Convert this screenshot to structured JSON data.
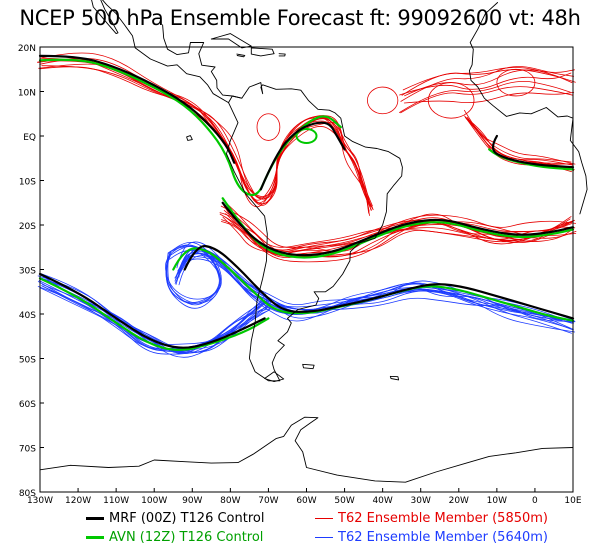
{
  "title": "NCEP 500 hPa Ensemble Forecast   ft: 99092600  vt: 48h",
  "map": {
    "projection": "lat-lon",
    "lon_range": [
      -130,
      10
    ],
    "lat_range": [
      -80,
      20
    ],
    "lat_ticks": [
      "20N",
      "10N",
      "EQ",
      "10S",
      "20S",
      "30S",
      "40S",
      "50S",
      "60S",
      "70S",
      "80S"
    ],
    "lon_ticks": [
      "130W",
      "120W",
      "110W",
      "100W",
      "90W",
      "80W",
      "70W",
      "60W",
      "50W",
      "40W",
      "30W",
      "20W",
      "10W",
      "0",
      "10E"
    ]
  },
  "legend": [
    {
      "label": "MRF (00Z) T126 Control",
      "color": "#000000"
    },
    {
      "label": "AVN (12Z) T126 Control",
      "color": "#00c800"
    },
    {
      "label": "T62 Ensemble Member (5850m)",
      "color": "#e60000"
    },
    {
      "label": "T62 Ensemble Member (5640m)",
      "color": "#1e3cff"
    }
  ],
  "colors": {
    "mrf": "#000000",
    "avn": "#00c800",
    "member_5850": "#e60000",
    "member_5640": "#1e3cff",
    "coast": "#000000"
  }
}
